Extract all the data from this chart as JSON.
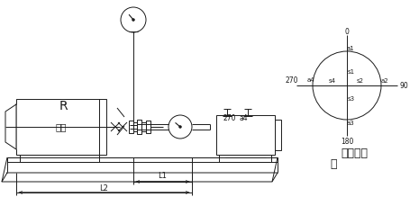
{
  "bg_color": "#ffffff",
  "line_color": "#1a1a1a",
  "motor_label": "电机",
  "R_label": "R",
  "L1_label": "L1",
  "L2_label": "L2",
  "label_270": "270",
  "label_a4": "a4",
  "label_0": "0",
  "label_a1": "a1",
  "label_s1": "s1",
  "label_s2": "s2",
  "label_s3": "s3",
  "label_s4": "s4",
  "label_a2": "a2",
  "label_90": "90",
  "label_a3": "a3",
  "label_180": "180",
  "measure_line1": "测量记录",
  "measure_line2": "图"
}
